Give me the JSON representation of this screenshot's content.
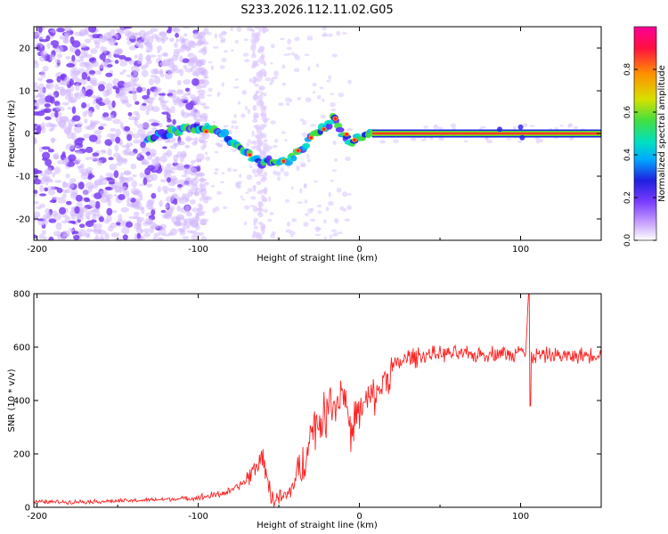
{
  "figure_title": "S233.2026.112.11.02.G05",
  "chart_data": [
    {
      "type": "heatmap",
      "title": "S233.2026.112.11.02.G05",
      "xlabel": "Height of straight line (km)",
      "ylabel": "Frequency (Hz)",
      "xlim": [
        -202,
        150
      ],
      "ylim": [
        -25,
        25
      ],
      "xticks": [
        -200,
        -100,
        0,
        100
      ],
      "yticks": [
        -20,
        -10,
        0,
        10,
        20
      ],
      "colorbar": {
        "label": "Normalized spectral amplitude",
        "range": [
          0,
          1
        ],
        "ticks": [
          0.0,
          0.2,
          0.4,
          0.6,
          0.8
        ],
        "colormap": "rainbow (violet to red)",
        "colors": [
          "#ffffff",
          "#c9a3ff",
          "#7a3cff",
          "#2020e0",
          "#00aaff",
          "#00e0c0",
          "#40e040",
          "#d8e000",
          "#ff9000",
          "#ff1040",
          "#ff0099"
        ]
      },
      "signal_trace": {
        "x": [
          -132,
          -120,
          -110,
          -100,
          -92,
          -85,
          -80,
          -75,
          -70,
          -65,
          -60,
          -55,
          -50,
          -45,
          -40,
          -35,
          -30,
          -25,
          -20,
          -17,
          -15,
          -12,
          -8,
          -5,
          -2,
          2,
          5,
          10,
          50,
          100,
          150
        ],
        "y": [
          -1,
          0,
          1,
          1.5,
          1,
          0,
          -1.5,
          -3,
          -4.5,
          -6,
          -7,
          -6.5,
          -7,
          -6.5,
          -5,
          -3,
          -1,
          0.5,
          1.5,
          3.5,
          3,
          0.5,
          -1,
          -2,
          -1,
          -0.5,
          0,
          0,
          0,
          0,
          0
        ]
      },
      "noise_region_x": [
        -202,
        -100
      ],
      "noise_column_x": -62
    },
    {
      "type": "line",
      "xlabel": "Height of straight line (km)",
      "ylabel": "SNR (10 * v/v)",
      "xlim": [
        -202,
        150
      ],
      "ylim": [
        0,
        800
      ],
      "xticks": [
        -200,
        -100,
        0,
        100
      ],
      "yticks": [
        0,
        200,
        400,
        600,
        800
      ],
      "color": "#ff2020",
      "series": [
        {
          "name": "SNR",
          "x": [
            -202,
            -180,
            -160,
            -140,
            -120,
            -100,
            -90,
            -80,
            -70,
            -65,
            -60,
            -57,
            -55,
            -50,
            -45,
            -40,
            -35,
            -32,
            -30,
            -25,
            -20,
            -18,
            -15,
            -10,
            -7,
            -5,
            -3,
            0,
            5,
            10,
            15,
            20,
            25,
            30,
            40,
            50,
            60,
            70,
            80,
            90,
            95,
            100,
            103,
            105,
            107,
            110,
            120,
            130,
            140,
            150
          ],
          "y": [
            20,
            20,
            22,
            25,
            30,
            35,
            45,
            60,
            100,
            150,
            180,
            120,
            30,
            30,
            40,
            100,
            150,
            250,
            280,
            320,
            350,
            420,
            380,
            450,
            350,
            250,
            350,
            350,
            400,
            420,
            470,
            520,
            540,
            560,
            570,
            575,
            575,
            570,
            575,
            580,
            560,
            620,
            560,
            800,
            560,
            570,
            570,
            565,
            570,
            575
          ]
        }
      ],
      "annotations": [
        {
          "x": 105,
          "y": 800,
          "note": "spike"
        },
        {
          "x": 105,
          "y": 380,
          "note": "dip"
        }
      ]
    }
  ]
}
